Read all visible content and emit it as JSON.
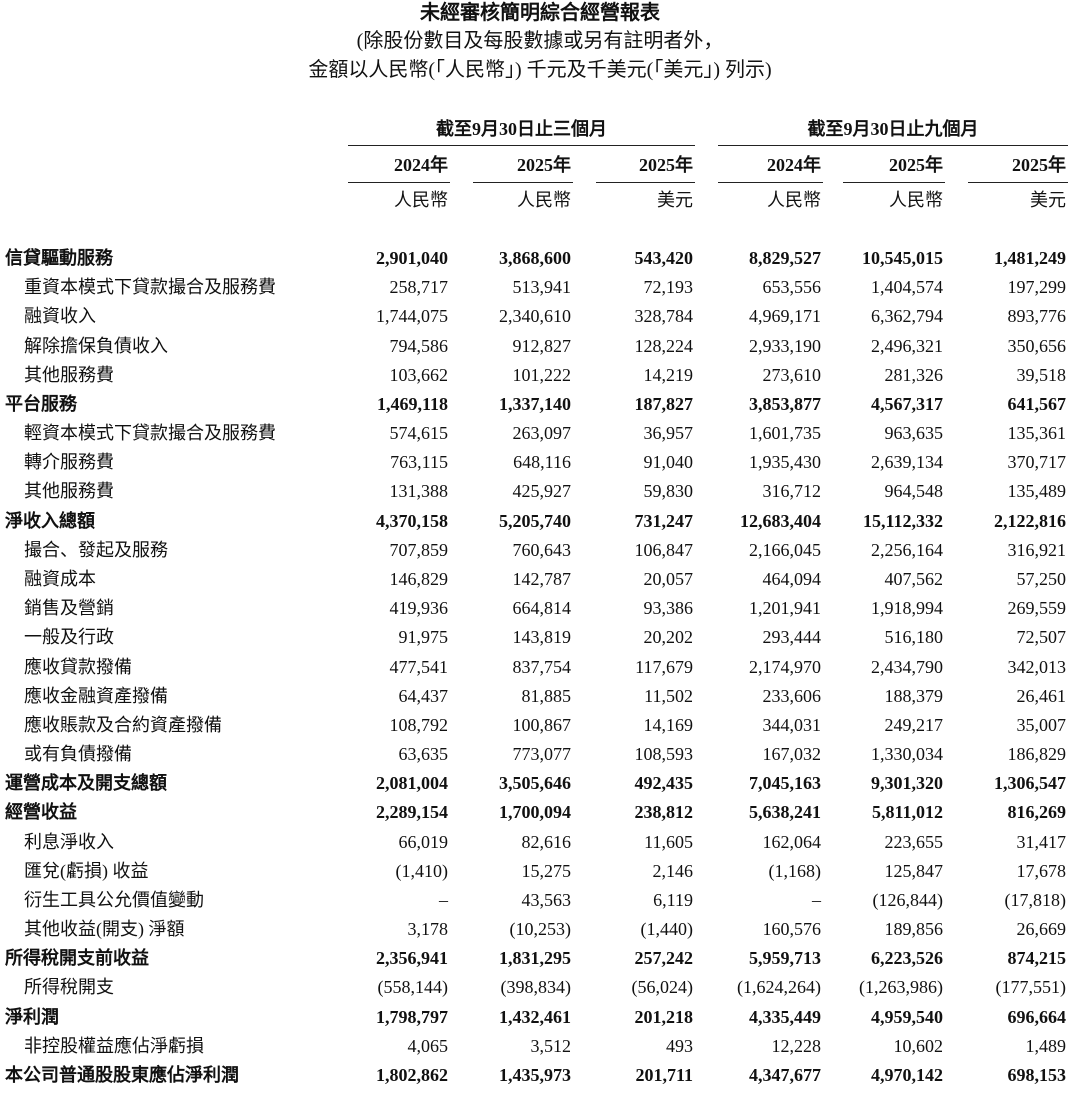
{
  "header": {
    "title": "未經審核簡明綜合經營報表",
    "subtitle": [
      "(除股份數目及每股數據或另有註明者外，",
      "金額以人民幣(「人民幣」) 千元及千美元(「美元」) 列示)"
    ]
  },
  "table": {
    "groups": [
      "截至9月30日止三個月",
      "截至9月30日止九個月"
    ],
    "years": [
      "2024年",
      "2025年",
      "2025年",
      "2024年",
      "2025年",
      "2025年"
    ],
    "currencies": [
      "人民幣",
      "人民幣",
      "美元",
      "人民幣",
      "人民幣",
      "美元"
    ],
    "rows": [
      {
        "label": "信貸驅動服務",
        "bold": true,
        "cells": [
          "2,901,040",
          "3,868,600",
          "543,420",
          "8,829,527",
          "10,545,015",
          "1,481,249"
        ]
      },
      {
        "label": "重資本模式下貸款撮合及服務費",
        "bold": false,
        "cells": [
          "258,717",
          "513,941",
          "72,193",
          "653,556",
          "1,404,574",
          "197,299"
        ]
      },
      {
        "label": "融資收入",
        "bold": false,
        "cells": [
          "1,744,075",
          "2,340,610",
          "328,784",
          "4,969,171",
          "6,362,794",
          "893,776"
        ]
      },
      {
        "label": "解除擔保負債收入",
        "bold": false,
        "cells": [
          "794,586",
          "912,827",
          "128,224",
          "2,933,190",
          "2,496,321",
          "350,656"
        ]
      },
      {
        "label": "其他服務費",
        "bold": false,
        "cells": [
          "103,662",
          "101,222",
          "14,219",
          "273,610",
          "281,326",
          "39,518"
        ]
      },
      {
        "label": "平台服務",
        "bold": true,
        "cells": [
          "1,469,118",
          "1,337,140",
          "187,827",
          "3,853,877",
          "4,567,317",
          "641,567"
        ]
      },
      {
        "label": "輕資本模式下貸款撮合及服務費",
        "bold": false,
        "cells": [
          "574,615",
          "263,097",
          "36,957",
          "1,601,735",
          "963,635",
          "135,361"
        ]
      },
      {
        "label": "轉介服務費",
        "bold": false,
        "cells": [
          "763,115",
          "648,116",
          "91,040",
          "1,935,430",
          "2,639,134",
          "370,717"
        ]
      },
      {
        "label": "其他服務費",
        "bold": false,
        "cells": [
          "131,388",
          "425,927",
          "59,830",
          "316,712",
          "964,548",
          "135,489"
        ]
      },
      {
        "label": "淨收入總額",
        "bold": true,
        "cells": [
          "4,370,158",
          "5,205,740",
          "731,247",
          "12,683,404",
          "15,112,332",
          "2,122,816"
        ]
      },
      {
        "label": "撮合、發起及服務",
        "bold": false,
        "cells": [
          "707,859",
          "760,643",
          "106,847",
          "2,166,045",
          "2,256,164",
          "316,921"
        ]
      },
      {
        "label": "融資成本",
        "bold": false,
        "cells": [
          "146,829",
          "142,787",
          "20,057",
          "464,094",
          "407,562",
          "57,250"
        ]
      },
      {
        "label": "銷售及營銷",
        "bold": false,
        "cells": [
          "419,936",
          "664,814",
          "93,386",
          "1,201,941",
          "1,918,994",
          "269,559"
        ]
      },
      {
        "label": "一般及行政",
        "bold": false,
        "cells": [
          "91,975",
          "143,819",
          "20,202",
          "293,444",
          "516,180",
          "72,507"
        ]
      },
      {
        "label": "應收貸款撥備",
        "bold": false,
        "cells": [
          "477,541",
          "837,754",
          "117,679",
          "2,174,970",
          "2,434,790",
          "342,013"
        ]
      },
      {
        "label": "應收金融資產撥備",
        "bold": false,
        "cells": [
          "64,437",
          "81,885",
          "11,502",
          "233,606",
          "188,379",
          "26,461"
        ]
      },
      {
        "label": "應收賬款及合約資產撥備",
        "bold": false,
        "cells": [
          "108,792",
          "100,867",
          "14,169",
          "344,031",
          "249,217",
          "35,007"
        ]
      },
      {
        "label": "或有負債撥備",
        "bold": false,
        "cells": [
          "63,635",
          "773,077",
          "108,593",
          "167,032",
          "1,330,034",
          "186,829"
        ]
      },
      {
        "label": "運營成本及開支總額",
        "bold": true,
        "cells": [
          "2,081,004",
          "3,505,646",
          "492,435",
          "7,045,163",
          "9,301,320",
          "1,306,547"
        ]
      },
      {
        "label": "經營收益",
        "bold": true,
        "cells": [
          "2,289,154",
          "1,700,094",
          "238,812",
          "5,638,241",
          "5,811,012",
          "816,269"
        ]
      },
      {
        "label": "利息淨收入",
        "bold": false,
        "cells": [
          "66,019",
          "82,616",
          "11,605",
          "162,064",
          "223,655",
          "31,417"
        ]
      },
      {
        "label": "匯兌(虧損) 收益",
        "bold": false,
        "cells": [
          "(1,410)",
          "15,275",
          "2,146",
          "(1,168)",
          "125,847",
          "17,678"
        ]
      },
      {
        "label": "衍生工具公允價值變動",
        "bold": false,
        "cells": [
          "–",
          "43,563",
          "6,119",
          "–",
          "(126,844)",
          "(17,818)"
        ]
      },
      {
        "label": "其他收益(開支) 淨額",
        "bold": false,
        "cells": [
          "3,178",
          "(10,253)",
          "(1,440)",
          "160,576",
          "189,856",
          "26,669"
        ]
      },
      {
        "label": "所得稅開支前收益",
        "bold": true,
        "cells": [
          "2,356,941",
          "1,831,295",
          "257,242",
          "5,959,713",
          "6,223,526",
          "874,215"
        ]
      },
      {
        "label": "所得稅開支",
        "bold": false,
        "cells": [
          "(558,144)",
          "(398,834)",
          "(56,024)",
          "(1,624,264)",
          "(1,263,986)",
          "(177,551)"
        ]
      },
      {
        "label": "淨利潤",
        "bold": true,
        "cells": [
          "1,798,797",
          "1,432,461",
          "201,218",
          "4,335,449",
          "4,959,540",
          "696,664"
        ]
      },
      {
        "label": "非控股權益應佔淨虧損",
        "bold": false,
        "cells": [
          "4,065",
          "3,512",
          "493",
          "12,228",
          "10,602",
          "1,489"
        ]
      },
      {
        "label": "本公司普通股股東應佔淨利潤",
        "bold": true,
        "cells": [
          "1,802,862",
          "1,435,973",
          "201,711",
          "4,347,677",
          "4,970,142",
          "698,153"
        ]
      }
    ]
  }
}
